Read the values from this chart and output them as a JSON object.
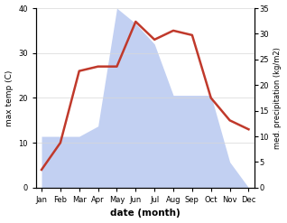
{
  "months": [
    "Jan",
    "Feb",
    "Mar",
    "Apr",
    "May",
    "Jun",
    "Jul",
    "Aug",
    "Sep",
    "Oct",
    "Nov",
    "Dec"
  ],
  "x": [
    1,
    2,
    3,
    4,
    5,
    6,
    7,
    8,
    9,
    10,
    11,
    12
  ],
  "temperature": [
    4,
    10,
    26,
    27,
    27,
    37,
    33,
    35,
    34,
    20,
    15,
    13
  ],
  "precipitation": [
    10,
    10,
    10,
    12,
    35,
    32,
    28,
    18,
    18,
    18,
    5,
    0
  ],
  "temp_color": "#c0392b",
  "precip_color": "#b8c8f0",
  "title": "",
  "xlabel": "date (month)",
  "ylabel_left": "max temp (C)",
  "ylabel_right": "med. precipitation (kg/m2)",
  "ylim_left": [
    0,
    40
  ],
  "ylim_right": [
    0,
    35
  ],
  "yticks_left": [
    0,
    10,
    20,
    30,
    40
  ],
  "yticks_right": [
    0,
    5,
    10,
    15,
    20,
    25,
    30,
    35
  ],
  "bg_color": "#ffffff",
  "line_width": 1.8
}
